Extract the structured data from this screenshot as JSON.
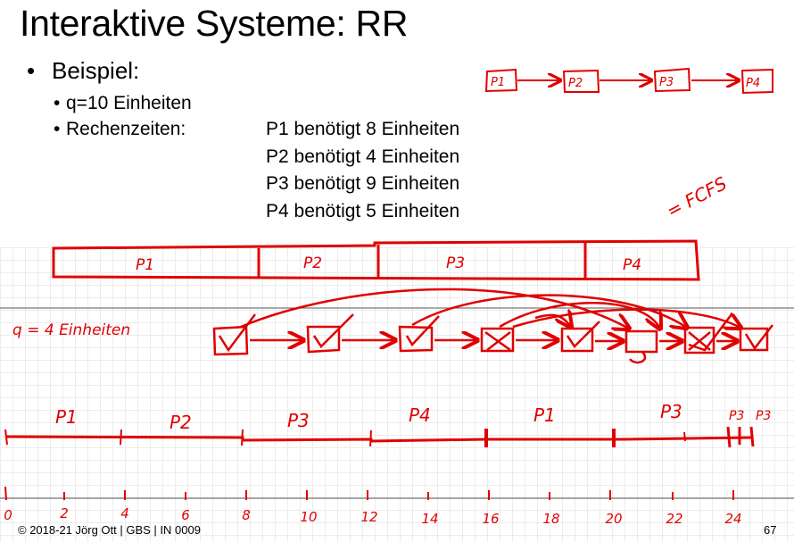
{
  "slide": {
    "title": "Interaktive Systeme: RR",
    "bullet": "Beispiel:",
    "quantum_line": "q=10 Einheiten",
    "rechenzeiten_label": "Rechenzeiten:",
    "process_lines": [
      "P1 benötigt 8 Einheiten",
      "P2 benötigt 4 Einheiten",
      "P3 benötigt 9 Einheiten",
      "P4 benötigt 5 Einheiten"
    ]
  },
  "annotations": {
    "queue_top": [
      "P1",
      "P2",
      "P3",
      "P4"
    ],
    "fcfs_note": "= FCFS",
    "gantt_q10": [
      "P1",
      "P2",
      "P3",
      "P4"
    ],
    "q4_note": "q = 4 Einheiten",
    "gantt_q4": [
      "P1",
      "P2",
      "P3",
      "P4",
      "P1",
      "P3",
      "P3",
      "P3"
    ],
    "axis_ticks": [
      "0",
      "2",
      "4",
      "6",
      "8",
      "10",
      "12",
      "14",
      "16",
      "18",
      "20",
      "22",
      "24"
    ]
  },
  "footer": {
    "copyright": "© 2018-21 Jörg Ott | GBS | IN 0009",
    "page_number": "67"
  },
  "colors": {
    "ink": "#e00000",
    "grid": "#ececec",
    "text": "#000000"
  }
}
